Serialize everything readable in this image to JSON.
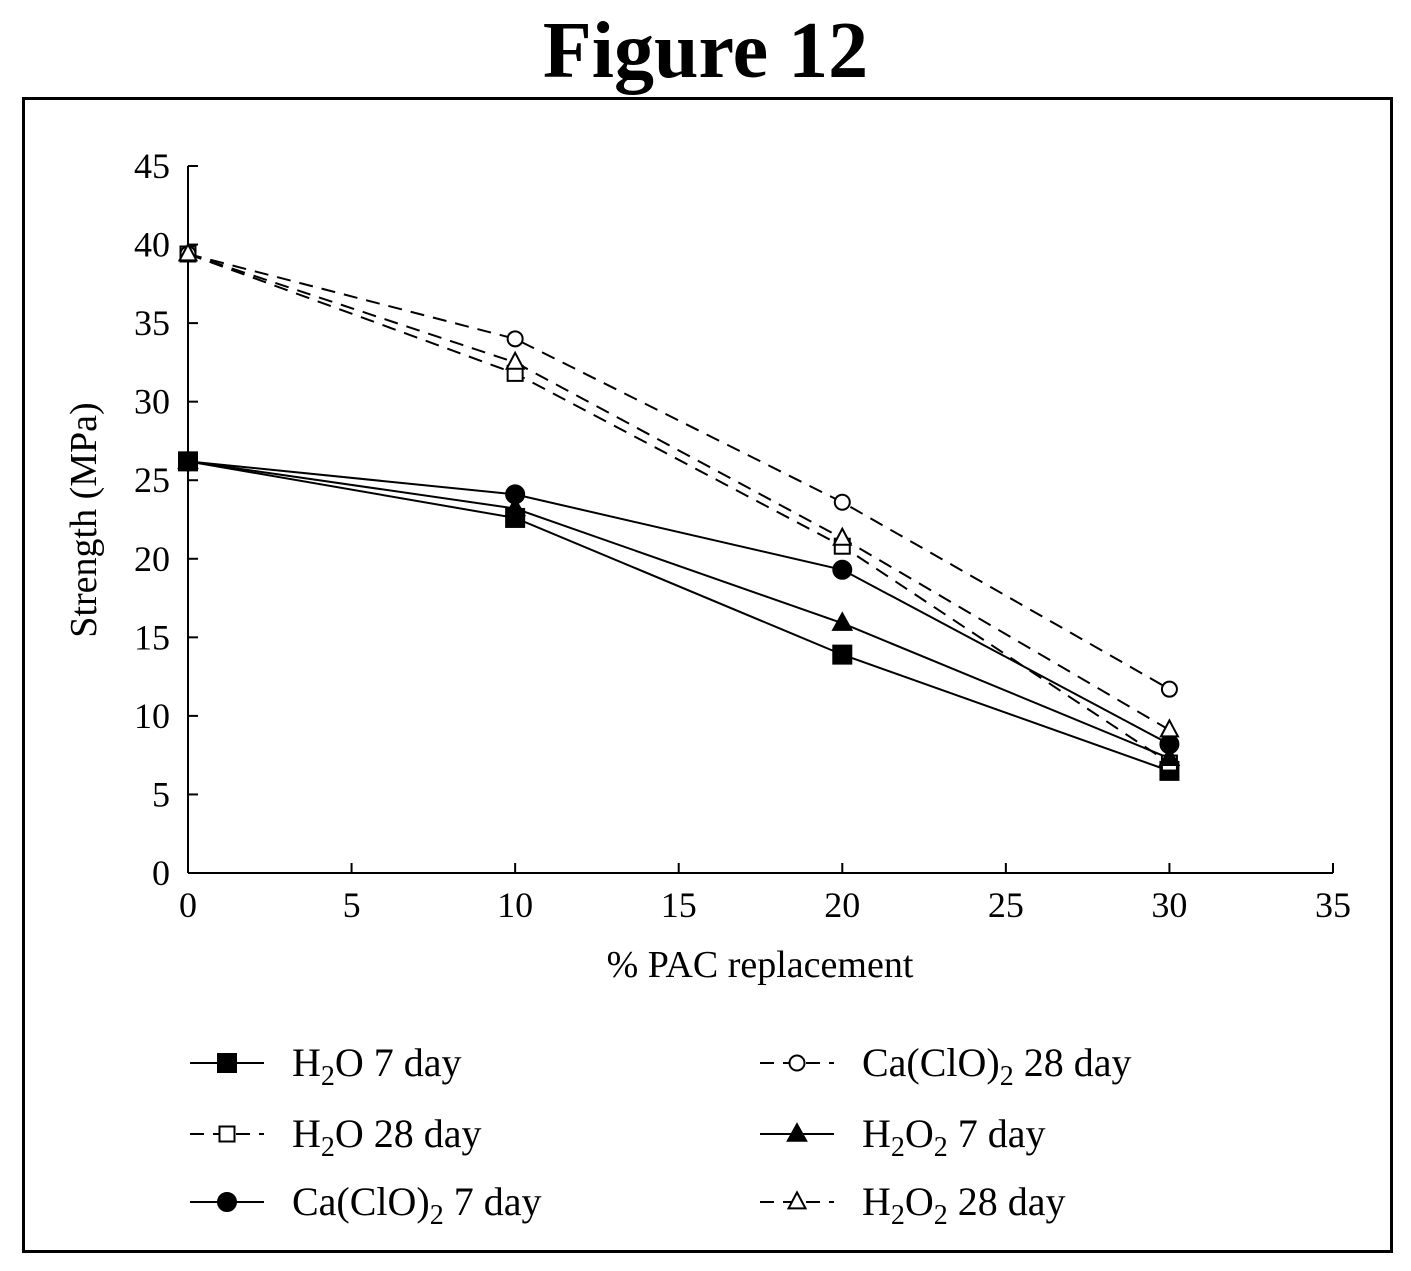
{
  "figure_title": "Figure 12",
  "chart_data": {
    "type": "line",
    "title": "",
    "xlabel": "% PAC replacement",
    "ylabel": "Strength (MPa)",
    "xlim": [
      0,
      35
    ],
    "ylim": [
      0,
      45
    ],
    "xticks": [
      0,
      5,
      10,
      15,
      20,
      25,
      30,
      35
    ],
    "yticks": [
      0,
      5,
      10,
      15,
      20,
      25,
      30,
      35,
      40,
      45
    ],
    "grid": false,
    "legend_position": "bottom",
    "x": [
      0,
      10,
      20,
      30
    ],
    "series": [
      {
        "name": "H2O 7 day",
        "legend_base": "H",
        "legend_sub1": "2",
        "legend_mid": "O",
        "legend_sub2": "",
        "legend_tail": " 7 day",
        "values": [
          26.2,
          22.6,
          13.9,
          6.5
        ],
        "marker": "square-filled",
        "dash": "solid"
      },
      {
        "name": "H2O 28 day",
        "legend_base": "H",
        "legend_sub1": "2",
        "legend_mid": "O",
        "legend_sub2": "",
        "legend_tail": " 28 day",
        "values": [
          39.4,
          31.8,
          20.8,
          7.0
        ],
        "marker": "square-open",
        "dash": "dashed"
      },
      {
        "name": "Ca(ClO)2 7 day",
        "legend_base": "Ca(ClO)",
        "legend_sub1": "2",
        "legend_mid": "",
        "legend_sub2": "",
        "legend_tail": " 7 day",
        "values": [
          26.2,
          24.1,
          19.3,
          8.2
        ],
        "marker": "circle-filled",
        "dash": "solid"
      },
      {
        "name": "Ca(ClO)2 28 day",
        "legend_base": "Ca(ClO)",
        "legend_sub1": "2",
        "legend_mid": "",
        "legend_sub2": "",
        "legend_tail": " 28 day",
        "values": [
          39.4,
          34.0,
          23.6,
          11.7
        ],
        "marker": "circle-open",
        "dash": "dashed"
      },
      {
        "name": "H2O2 7 day",
        "legend_base": "H",
        "legend_sub1": "2",
        "legend_mid": "O",
        "legend_sub2": "2",
        "legend_tail": " 7 day",
        "values": [
          26.2,
          23.2,
          15.9,
          7.3
        ],
        "marker": "triangle-filled",
        "dash": "solid"
      },
      {
        "name": "H2O2 28 day",
        "legend_base": "H",
        "legend_sub1": "2",
        "legend_mid": "O",
        "legend_sub2": "2",
        "legend_tail": " 28 day",
        "values": [
          39.4,
          32.5,
          21.3,
          9.1
        ],
        "marker": "triangle-open",
        "dash": "dashed"
      }
    ]
  }
}
